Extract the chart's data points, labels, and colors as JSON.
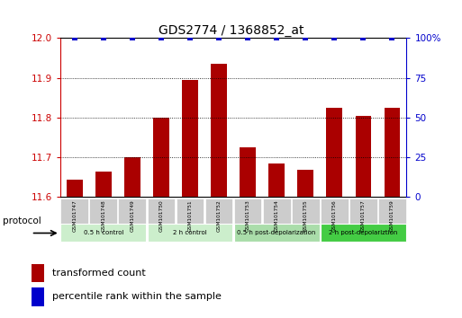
{
  "title": "GDS2774 / 1368852_at",
  "samples": [
    "GSM101747",
    "GSM101748",
    "GSM101749",
    "GSM101750",
    "GSM101751",
    "GSM101752",
    "GSM101753",
    "GSM101754",
    "GSM101755",
    "GSM101756",
    "GSM101757",
    "GSM101759"
  ],
  "bar_values": [
    11.645,
    11.665,
    11.7,
    11.8,
    11.895,
    11.935,
    11.725,
    11.685,
    11.67,
    11.825,
    11.805,
    11.825
  ],
  "percentile_values": [
    100,
    100,
    100,
    100,
    100,
    100,
    100,
    100,
    100,
    100,
    100,
    100
  ],
  "ylim_left": [
    11.6,
    12.0
  ],
  "ylim_right": [
    0,
    100
  ],
  "yticks_left": [
    11.6,
    11.7,
    11.8,
    11.9,
    12.0
  ],
  "yticks_right": [
    0,
    25,
    50,
    75,
    100
  ],
  "ytick_right_labels": [
    "0",
    "25",
    "50",
    "75",
    "100%"
  ],
  "bar_color": "#aa0000",
  "percentile_color": "#0000cc",
  "bar_bottom": 11.6,
  "groups": [
    {
      "label": "0.5 h control",
      "start": 0,
      "end": 2,
      "color": "#cceecc"
    },
    {
      "label": "2 h control",
      "start": 3,
      "end": 5,
      "color": "#cceecc"
    },
    {
      "label": "0.5 h post-depolarization",
      "start": 6,
      "end": 8,
      "color": "#aaddaa"
    },
    {
      "label": "2 h post-depolariztion",
      "start": 9,
      "end": 11,
      "color": "#44cc44"
    }
  ],
  "protocol_label": "protocol",
  "legend_bar_label": "transformed count",
  "legend_percentile_label": "percentile rank within the sample",
  "tick_label_color_left": "#cc0000",
  "tick_label_color_right": "#0000cc",
  "gridlines": [
    11.7,
    11.8,
    11.9
  ]
}
